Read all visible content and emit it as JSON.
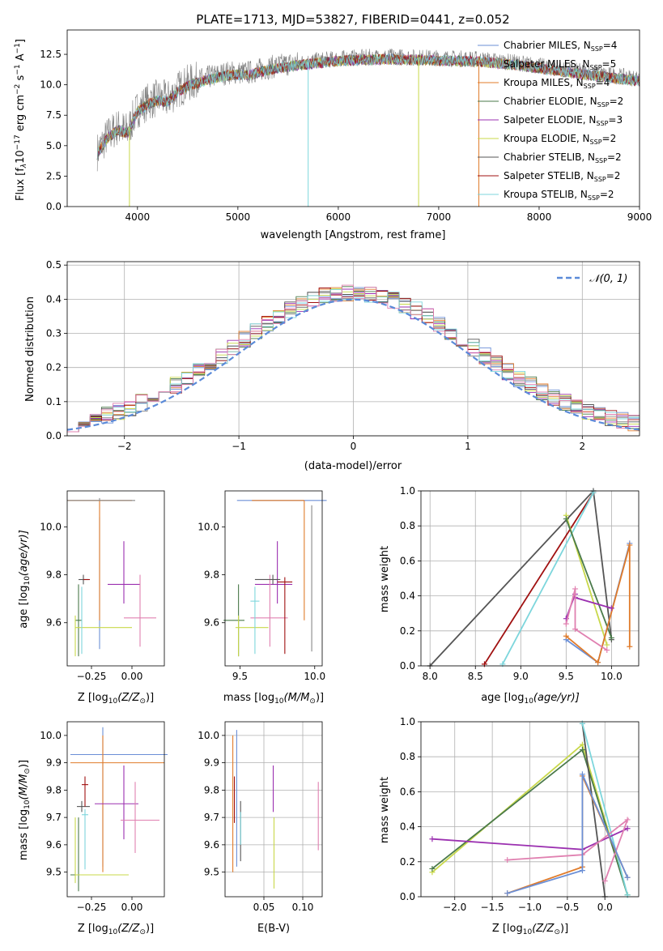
{
  "title": "PLATE=1713, MJD=53827, FIBERID=0441, z=0.052",
  "colors": {
    "chabrier_miles": "#6b8fd6",
    "salpeter_miles": "#888888",
    "kroupa_miles": "#e07b2a",
    "chabrier_elodie": "#4a7a4a",
    "salpeter_elodie": "#9b30b0",
    "kroupa_elodie": "#c8d84a",
    "chabrier_stelib": "#555555",
    "salpeter_stelib": "#a01010",
    "kroupa_stelib": "#7dd6dc",
    "pink": "#e080b0",
    "gaussian": "#5a8ad8"
  },
  "chart_data": [
    {
      "id": "spectrum",
      "type": "line",
      "title": "PLATE=1713, MJD=53827, FIBERID=0441, z=0.052",
      "xlabel": "wavelength [Angstrom, rest frame]",
      "ylabel": "Flux [f$_\\lambda$10$^{-17}$ erg cm$^{-2}$ s$^{-1}$ A$^{-1}$]",
      "ylabel_parts": {
        "a": "Flux [f",
        "b": "λ",
        "c": "10",
        "d": "−17",
        "e": " erg cm",
        "f": "−2",
        "g": " s",
        "h": "−1",
        "i": " A",
        "j": "−1",
        "k": "]"
      },
      "xlim": [
        3300,
        9000
      ],
      "ylim": [
        0,
        14.5
      ],
      "xticks": [
        4000,
        5000,
        6000,
        7000,
        8000,
        9000
      ],
      "yticks": [
        0.0,
        2.5,
        5.0,
        7.5,
        10.0,
        12.5
      ],
      "ytick_labels": [
        "0.0",
        "2.5",
        "5.0",
        "7.5",
        "10.0",
        "12.5"
      ],
      "x_range_data": [
        3600,
        9000
      ],
      "continuum_points": [
        [
          3600,
          4.5
        ],
        [
          3700,
          5.8
        ],
        [
          3800,
          6.5
        ],
        [
          3900,
          6.2
        ],
        [
          4000,
          8.0
        ],
        [
          4100,
          8.6
        ],
        [
          4200,
          8.9
        ],
        [
          4300,
          8.8
        ],
        [
          4400,
          9.6
        ],
        [
          4500,
          10.1
        ],
        [
          4700,
          10.6
        ],
        [
          4900,
          11.0
        ],
        [
          5100,
          11.0
        ],
        [
          5300,
          11.4
        ],
        [
          5500,
          11.7
        ],
        [
          5800,
          12.0
        ],
        [
          6100,
          12.2
        ],
        [
          6500,
          12.3
        ],
        [
          7000,
          12.2
        ],
        [
          7400,
          12.1
        ],
        [
          7800,
          11.8
        ],
        [
          8200,
          11.3
        ],
        [
          8600,
          10.9
        ],
        [
          9000,
          10.5
        ]
      ],
      "legend": [
        {
          "label": "Chabrier MILES, N",
          "sub": "SSP",
          "val": "=4",
          "color": "#6b8fd6"
        },
        {
          "label": "Salpeter MILES, N",
          "sub": "SSP",
          "val": "=5",
          "color": "#888888"
        },
        {
          "label": "Kroupa MILES, N",
          "sub": "SSP",
          "val": "=4",
          "color": "#e07b2a"
        },
        {
          "label": "Chabrier ELODIE, N",
          "sub": "SSP",
          "val": "=2",
          "color": "#4a7a4a"
        },
        {
          "label": "Salpeter ELODIE, N",
          "sub": "SSP",
          "val": "=3",
          "color": "#9b30b0"
        },
        {
          "label": "Kroupa ELODIE, N",
          "sub": "SSP",
          "val": "=2",
          "color": "#c8d84a"
        },
        {
          "label": "Chabrier STELIB, N",
          "sub": "SSP",
          "val": "=2",
          "color": "#555555"
        },
        {
          "label": "Salpeter STELIB, N",
          "sub": "SSP",
          "val": "=2",
          "color": "#a01010"
        },
        {
          "label": "Kroupa STELIB, N",
          "sub": "SSP",
          "val": "=2",
          "color": "#7dd6dc"
        }
      ]
    },
    {
      "id": "residuals",
      "type": "line",
      "xlabel": "(data-model)/error",
      "ylabel": "Normed distribution",
      "xlim": [
        -2.5,
        2.5
      ],
      "ylim": [
        0,
        0.51
      ],
      "xticks": [
        -2,
        -1,
        0,
        1,
        2
      ],
      "xtick_labels": [
        "−2",
        "−1",
        "0",
        "1",
        "2"
      ],
      "yticks": [
        0.0,
        0.1,
        0.2,
        0.3,
        0.4,
        0.5
      ],
      "ytick_labels": [
        "0.0",
        "0.1",
        "0.2",
        "0.3",
        "0.4",
        "0.5"
      ],
      "legend_label": "𝒩(0, 1)",
      "bin_width": 0.1
    },
    {
      "id": "age_vs_Z",
      "type": "scatter",
      "xlabel": "Z [log",
      "xlabel_sub": "10",
      "xlabel_tail": "(Z/Z",
      "xlabel_end": ")]",
      "ylabel": "age  [log",
      "ylabel_sub": "10",
      "ylabel_tail": "(age/yr)]",
      "xlim": [
        -0.4,
        0.2
      ],
      "ylim": [
        9.42,
        10.15
      ],
      "xticks": [
        -0.25,
        0.0
      ],
      "xtick_labels": [
        "−0.25",
        "0.00"
      ],
      "yticks": [
        9.6,
        9.8,
        10.0
      ],
      "ytick_labels": [
        "9.6",
        "9.8",
        "10.0"
      ]
    },
    {
      "id": "age_vs_mass",
      "type": "scatter",
      "xlabel": "mass [log",
      "xlabel_sub": "10",
      "xlabel_tail": "(M/M",
      "xlabel_end": ")]",
      "xlim": [
        9.4,
        10.05
      ],
      "ylim": [
        9.42,
        10.15
      ],
      "xticks": [
        9.5,
        10.0
      ],
      "xtick_labels": [
        "9.5",
        "10.0"
      ],
      "yticks": [
        9.6,
        9.8,
        10.0
      ],
      "ytick_labels": [
        "9.6",
        "9.8",
        "10.0"
      ]
    },
    {
      "id": "weight_vs_age",
      "type": "line",
      "xlabel": "age  [log",
      "xlabel_sub": "10",
      "xlabel_tail": "(age/yr)]",
      "ylabel": "mass weight",
      "xlim": [
        7.9,
        10.3
      ],
      "ylim": [
        0,
        1
      ],
      "xticks": [
        8.0,
        8.5,
        9.0,
        9.5,
        10.0
      ],
      "xtick_labels": [
        "8.0",
        "8.5",
        "9.0",
        "9.5",
        "10.0"
      ],
      "yticks": [
        0.0,
        0.2,
        0.4,
        0.6,
        0.8,
        1.0
      ],
      "ytick_labels": [
        "0.0",
        "0.2",
        "0.4",
        "0.6",
        "0.8",
        "1.0"
      ],
      "series": [
        {
          "color": "#555555",
          "x": [
            8.0,
            9.8,
            10.0
          ],
          "y": [
            0.0,
            1.0,
            0.15
          ]
        },
        {
          "color": "#a01010",
          "x": [
            8.6,
            9.8
          ],
          "y": [
            0.01,
            0.99
          ]
        },
        {
          "color": "#7dd6dc",
          "x": [
            8.8,
            9.8
          ],
          "y": [
            0.01,
            0.99
          ]
        },
        {
          "color": "#c8d84a",
          "x": [
            9.5,
            9.95
          ],
          "y": [
            0.86,
            0.12
          ]
        },
        {
          "color": "#4a7a4a",
          "x": [
            9.5,
            10.0
          ],
          "y": [
            0.84,
            0.16
          ]
        },
        {
          "color": "#6b8fd6",
          "x": [
            9.5,
            9.85,
            10.2
          ],
          "y": [
            0.15,
            0.02,
            0.7
          ]
        },
        {
          "color": "#e07b2a",
          "x": [
            9.5,
            9.85,
            10.2,
            10.2
          ],
          "y": [
            0.17,
            0.02,
            0.69,
            0.11
          ]
        },
        {
          "color": "#9b30b0",
          "x": [
            9.5,
            9.6,
            9.6,
            10.0
          ],
          "y": [
            0.27,
            0.41,
            0.39,
            0.33
          ]
        },
        {
          "color": "#e080b0",
          "x": [
            9.5,
            9.6,
            9.6,
            9.95
          ],
          "y": [
            0.24,
            0.44,
            0.21,
            0.09
          ]
        }
      ]
    },
    {
      "id": "mass_vs_Z",
      "type": "scatter",
      "xlabel": "Z [log",
      "xlabel_sub": "10",
      "xlabel_tail": "(Z/Z",
      "xlabel_end": ")]",
      "ylabel": "mass [log",
      "ylabel_sub": "10",
      "ylabel_tail": "(M/M",
      "ylabel_end": ")]",
      "xlim": [
        -0.4,
        0.2
      ],
      "ylim": [
        9.41,
        10.05
      ],
      "xticks": [
        -0.25,
        0.0
      ],
      "xtick_labels": [
        "−0.25",
        "0.00"
      ],
      "yticks": [
        9.5,
        9.6,
        9.7,
        9.8,
        9.9,
        10.0
      ],
      "ytick_labels": [
        "9.5",
        "9.6",
        "9.7",
        "9.8",
        "9.9",
        "10.0"
      ]
    },
    {
      "id": "mass_vs_ebv",
      "type": "scatter",
      "xlabel": "E(B-V)",
      "xlim": [
        0.0,
        0.125
      ],
      "ylim": [
        9.41,
        10.05
      ],
      "xticks": [
        0.05,
        0.1
      ],
      "xtick_labels": [
        "0.05",
        "0.10"
      ],
      "yticks": [
        9.5,
        9.6,
        9.7,
        9.8,
        9.9,
        10.0
      ],
      "ytick_labels": [
        "9.5",
        "9.6",
        "9.7",
        "9.8",
        "9.9",
        "10.0"
      ]
    },
    {
      "id": "weight_vs_Z",
      "type": "line",
      "xlabel": "Z [log",
      "xlabel_sub": "10",
      "xlabel_tail": "(Z/Z",
      "xlabel_end": ")]",
      "ylabel": "mass weight",
      "xlim": [
        -2.45,
        0.45
      ],
      "ylim": [
        0,
        1
      ],
      "xticks": [
        -2.0,
        -1.5,
        -1.0,
        -0.5,
        0.0
      ],
      "xtick_labels": [
        "−2.0",
        "−1.5",
        "−1.0",
        "−0.5",
        "0.0"
      ],
      "yticks": [
        0.0,
        0.2,
        0.4,
        0.6,
        0.8,
        1.0
      ],
      "ytick_labels": [
        "0.0",
        "0.2",
        "0.4",
        "0.6",
        "0.8",
        "1.0"
      ],
      "series": [
        {
          "color": "#c8d84a",
          "x": [
            -2.3,
            -0.3,
            0.3
          ],
          "y": [
            0.14,
            0.87,
            0.01
          ]
        },
        {
          "color": "#4a7a4a",
          "x": [
            -2.3,
            -0.3,
            0.3
          ],
          "y": [
            0.16,
            0.84,
            0.01
          ]
        },
        {
          "color": "#555555",
          "x": [
            -0.3,
            0.0
          ],
          "y": [
            0.99,
            0.0
          ]
        },
        {
          "color": "#7dd6dc",
          "x": [
            -0.3,
            0.3
          ],
          "y": [
            0.99,
            0.01
          ]
        },
        {
          "color": "#9b30b0",
          "x": [
            -2.3,
            -0.3,
            0.3
          ],
          "y": [
            0.33,
            0.27,
            0.39
          ]
        },
        {
          "color": "#e080b0",
          "x": [
            -1.3,
            -0.3,
            0.3,
            0.0
          ],
          "y": [
            0.21,
            0.24,
            0.44,
            0.09
          ]
        },
        {
          "color": "#e07b2a",
          "x": [
            -1.3,
            -0.3,
            -0.3,
            0.3
          ],
          "y": [
            0.02,
            0.17,
            0.69,
            0.11
          ]
        },
        {
          "color": "#6b8fd6",
          "x": [
            -1.3,
            -0.3,
            -0.3,
            0.3
          ],
          "y": [
            0.02,
            0.15,
            0.7,
            0.11
          ]
        }
      ]
    }
  ]
}
